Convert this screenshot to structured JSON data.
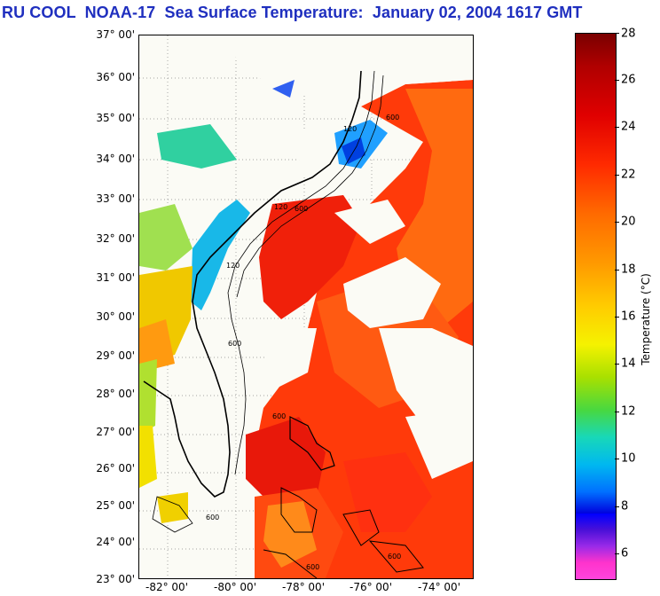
{
  "title": "RU COOL  NOAA-17  Sea Surface Temperature:  January 02, 2004 1617 GMT",
  "lat_labels": [
    "37° 00'",
    "36° 00'",
    "35° 00'",
    "34° 00'",
    "33° 00'",
    "32° 00'",
    "31° 00'",
    "30° 00'",
    "29° 00'",
    "28° 00'",
    "27° 00'",
    "26° 00'",
    "25° 00'",
    "24° 00'",
    "23° 00'"
  ],
  "lon_labels": [
    "-82° 00'",
    "-80° 00'",
    "-78° 00'",
    "-76° 00'",
    "-74° 00'"
  ],
  "colorbar": {
    "label": "Temperature (°C)",
    "ticks": [
      "28",
      "26",
      "24",
      "22",
      "20",
      "18",
      "16",
      "14",
      "12",
      "10",
      "8",
      "6"
    ],
    "min": 5,
    "max": 28
  },
  "contour_labels": [
    "600",
    "120",
    "600",
    "120",
    "600",
    "600",
    "600",
    "120",
    "600",
    "600"
  ],
  "colors": {
    "title": "#1f2fbf",
    "land": "#fbfbf5",
    "warm_water": "#ff2a00",
    "cool_water": "#18d8b8"
  }
}
